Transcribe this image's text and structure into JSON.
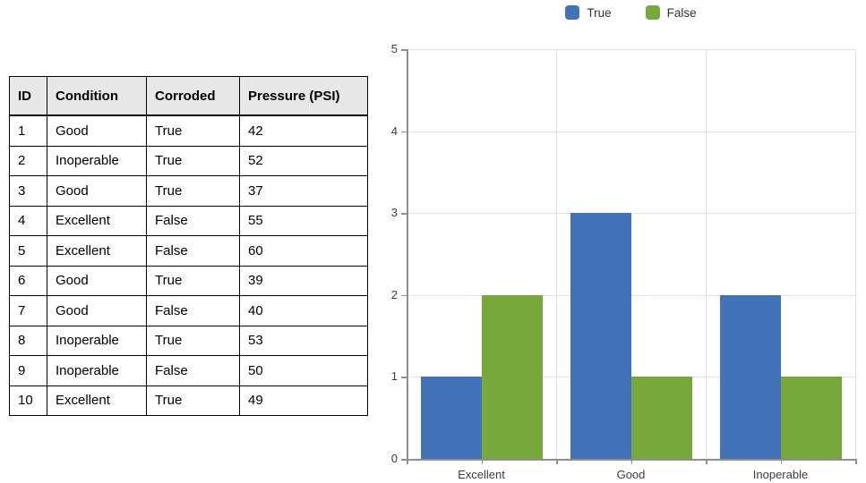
{
  "table": {
    "headers": [
      "ID",
      "Condition",
      "Corroded",
      "Pressure (PSI)"
    ],
    "rows": [
      [
        "1",
        "Good",
        "True",
        "42"
      ],
      [
        "2",
        "Inoperable",
        "True",
        "52"
      ],
      [
        "3",
        "Good",
        "True",
        "37"
      ],
      [
        "4",
        "Excellent",
        "False",
        "55"
      ],
      [
        "5",
        "Excellent",
        "False",
        "60"
      ],
      [
        "6",
        "Good",
        "True",
        "39"
      ],
      [
        "7",
        "Good",
        "False",
        "40"
      ],
      [
        "8",
        "Inoperable",
        "True",
        "53"
      ],
      [
        "9",
        "Inoperable",
        "False",
        "50"
      ],
      [
        "10",
        "Excellent",
        "True",
        "49"
      ]
    ]
  },
  "chart_data": {
    "type": "bar",
    "title": "",
    "categories": [
      "Excellent",
      "Good",
      "Inoperable"
    ],
    "series": [
      {
        "name": "True",
        "color": "#4273B8",
        "values": [
          1,
          3,
          2
        ]
      },
      {
        "name": "False",
        "color": "#78A83C",
        "values": [
          2,
          1,
          1
        ]
      }
    ],
    "ylabel": "",
    "xlabel": "",
    "ylim": [
      0,
      5
    ],
    "ytick_step": 1,
    "yticks": [
      0,
      1,
      2,
      3,
      4,
      5
    ],
    "grid": true,
    "legend_position": "top",
    "gridline_color": "#E2E2E2",
    "axis_color": "#8F8F8F",
    "label_color": "#3d3d3d"
  }
}
